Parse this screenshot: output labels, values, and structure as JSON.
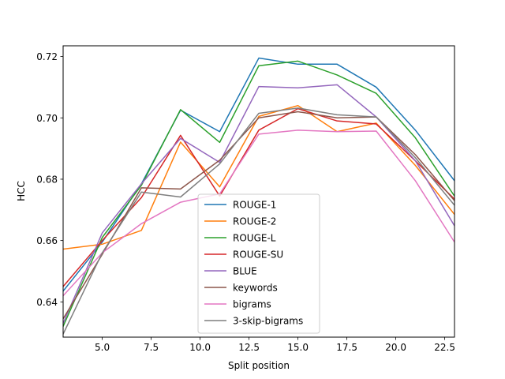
{
  "chart_data": {
    "type": "line",
    "xlabel": "Split position",
    "ylabel": "HCC",
    "xlim": [
      3,
      23
    ],
    "ylim": [
      0.6285,
      0.7235
    ],
    "grid": false,
    "legend_position": "lower center",
    "xticks": [
      5.0,
      7.5,
      10.0,
      12.5,
      15.0,
      17.5,
      20.0,
      22.5
    ],
    "xtick_labels": [
      "5.0",
      "7.5",
      "10.0",
      "12.5",
      "15.0",
      "17.5",
      "20.0",
      "22.5"
    ],
    "yticks": [
      0.64,
      0.66,
      0.68,
      0.7,
      0.72
    ],
    "ytick_labels": [
      "0.64",
      "0.66",
      "0.68",
      "0.70",
      "0.72"
    ],
    "x": [
      3,
      5,
      7,
      9,
      11,
      13,
      15,
      17,
      19,
      21,
      23
    ],
    "series": [
      {
        "name": "ROUGE-1",
        "color": "#1f77b4",
        "values": [
          0.6435,
          0.6595,
          0.6785,
          0.7025,
          0.6955,
          0.7195,
          0.7175,
          0.7175,
          0.71,
          0.696,
          0.6795
        ]
      },
      {
        "name": "ROUGE-2",
        "color": "#ff7f0e",
        "values": [
          0.6572,
          0.6588,
          0.6633,
          0.6921,
          0.6775,
          0.7005,
          0.704,
          0.6955,
          0.6983,
          0.6845,
          0.6685
        ]
      },
      {
        "name": "ROUGE-L",
        "color": "#2ca02c",
        "values": [
          0.632,
          0.661,
          0.678,
          0.7027,
          0.692,
          0.717,
          0.7185,
          0.714,
          0.708,
          0.6935,
          0.6745
        ]
      },
      {
        "name": "ROUGE-SU",
        "color": "#d62728",
        "values": [
          0.645,
          0.66,
          0.674,
          0.6943,
          0.6745,
          0.696,
          0.703,
          0.699,
          0.698,
          0.686,
          0.6735
        ]
      },
      {
        "name": "BLUE",
        "color": "#9467bd",
        "values": [
          0.633,
          0.6625,
          0.6785,
          0.6933,
          0.6855,
          0.7102,
          0.7098,
          0.7108,
          0.7003,
          0.686,
          0.6648
        ]
      },
      {
        "name": "keywords",
        "color": "#8c564b",
        "values": [
          0.6345,
          0.6555,
          0.6772,
          0.6768,
          0.6862,
          0.7,
          0.702,
          0.7,
          0.7003,
          0.688,
          0.673
        ]
      },
      {
        "name": "bigrams",
        "color": "#e377c2",
        "values": [
          0.642,
          0.656,
          0.6655,
          0.6725,
          0.6752,
          0.6947,
          0.696,
          0.6955,
          0.6957,
          0.6795,
          0.6595
        ]
      },
      {
        "name": "3-skip-bigrams",
        "color": "#7f7f7f",
        "values": [
          0.6295,
          0.656,
          0.6758,
          0.6742,
          0.685,
          0.7015,
          0.7032,
          0.701,
          0.7003,
          0.687,
          0.6715
        ]
      }
    ]
  }
}
